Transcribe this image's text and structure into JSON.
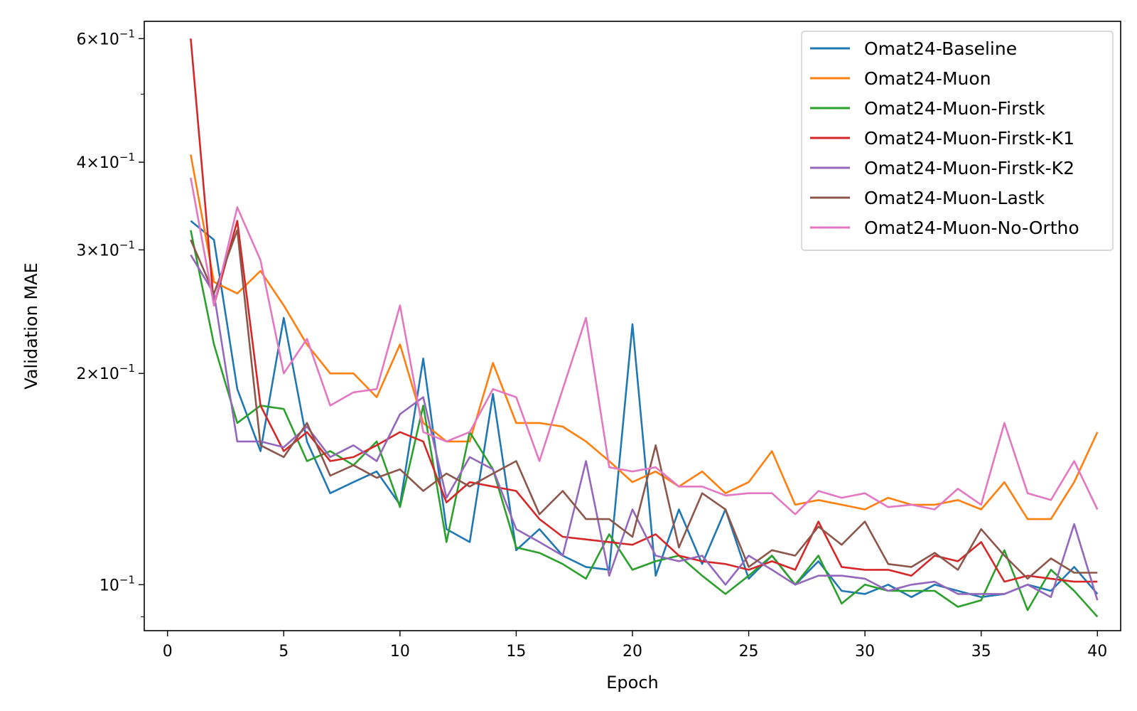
{
  "chart_data": {
    "type": "line",
    "title": "",
    "xlabel": "Epoch",
    "ylabel": "Validation MAE",
    "yscale": "log",
    "xlim": [
      -1,
      41
    ],
    "ylim": [
      0.086,
      0.635
    ],
    "x_ticks": [
      0,
      5,
      10,
      15,
      20,
      25,
      30,
      35,
      40
    ],
    "x_tick_labels": [
      "0",
      "5",
      "10",
      "15",
      "20",
      "25",
      "30",
      "35",
      "40"
    ],
    "y_ticks": [
      {
        "value": 0.6,
        "base": "6×10",
        "exp": "−1"
      },
      {
        "value": 0.4,
        "base": "4×10",
        "exp": "−1"
      },
      {
        "value": 0.3,
        "base": "3×10",
        "exp": "−1"
      },
      {
        "value": 0.2,
        "base": "2×10",
        "exp": "−1"
      },
      {
        "value": 0.1,
        "base": "10",
        "exp": "−1"
      }
    ],
    "y_minor_ticks": [
      0.5,
      0.09
    ],
    "legend_position": "top-right",
    "grid": false,
    "x": [
      1,
      2,
      3,
      4,
      5,
      6,
      7,
      8,
      9,
      10,
      11,
      12,
      13,
      14,
      15,
      16,
      17,
      18,
      19,
      20,
      21,
      22,
      23,
      24,
      25,
      26,
      27,
      28,
      29,
      30,
      31,
      32,
      33,
      34,
      35,
      36,
      37,
      38,
      39,
      40
    ],
    "series": [
      {
        "name": "Omat24-Baseline",
        "color": "#1f77b4",
        "values": [
          0.33,
          0.31,
          0.19,
          0.155,
          0.24,
          0.16,
          0.135,
          0.14,
          0.145,
          0.13,
          0.21,
          0.12,
          0.115,
          0.187,
          0.112,
          0.12,
          0.11,
          0.106,
          0.105,
          0.235,
          0.103,
          0.128,
          0.107,
          0.128,
          0.102,
          0.11,
          0.1,
          0.108,
          0.098,
          0.097,
          0.1,
          0.096,
          0.1,
          0.098,
          0.096,
          0.097,
          0.1,
          0.098,
          0.106,
          0.097
        ]
      },
      {
        "name": "Omat24-Muon",
        "color": "#ff7f0e",
        "values": [
          0.41,
          0.27,
          0.26,
          0.28,
          0.25,
          0.22,
          0.2,
          0.2,
          0.185,
          0.22,
          0.17,
          0.16,
          0.16,
          0.207,
          0.17,
          0.17,
          0.168,
          0.16,
          0.15,
          0.14,
          0.145,
          0.138,
          0.145,
          0.135,
          0.14,
          0.155,
          0.13,
          0.132,
          0.13,
          0.128,
          0.133,
          0.13,
          0.13,
          0.132,
          0.128,
          0.14,
          0.124,
          0.124,
          0.14,
          0.165
        ]
      },
      {
        "name": "Omat24-Muon-Firstk",
        "color": "#2ca02c",
        "values": [
          0.32,
          0.22,
          0.17,
          0.18,
          0.178,
          0.15,
          0.155,
          0.148,
          0.16,
          0.129,
          0.18,
          0.115,
          0.165,
          0.146,
          0.113,
          0.111,
          0.107,
          0.102,
          0.118,
          0.105,
          0.108,
          0.11,
          0.103,
          0.097,
          0.103,
          0.11,
          0.1,
          0.11,
          0.094,
          0.1,
          0.098,
          0.098,
          0.098,
          0.093,
          0.095,
          0.112,
          0.092,
          0.105,
          0.098,
          0.09
        ]
      },
      {
        "name": "Omat24-Muon-Firstk-K1",
        "color": "#d62728",
        "values": [
          0.6,
          0.25,
          0.33,
          0.18,
          0.155,
          0.165,
          0.15,
          0.152,
          0.158,
          0.165,
          0.16,
          0.131,
          0.14,
          0.138,
          0.136,
          0.124,
          0.117,
          0.116,
          0.115,
          0.114,
          0.118,
          0.11,
          0.108,
          0.107,
          0.105,
          0.108,
          0.105,
          0.123,
          0.106,
          0.105,
          0.105,
          0.103,
          0.11,
          0.108,
          0.115,
          0.101,
          0.103,
          0.102,
          0.101,
          0.101
        ]
      },
      {
        "name": "Omat24-Muon-Firstk-K2",
        "color": "#9467bd",
        "values": [
          0.295,
          0.26,
          0.16,
          0.16,
          0.157,
          0.168,
          0.152,
          0.158,
          0.15,
          0.175,
          0.185,
          0.133,
          0.152,
          0.146,
          0.12,
          0.115,
          0.11,
          0.15,
          0.103,
          0.128,
          0.11,
          0.108,
          0.11,
          0.1,
          0.11,
          0.105,
          0.1,
          0.103,
          0.103,
          0.102,
          0.098,
          0.1,
          0.101,
          0.097,
          0.097,
          0.097,
          0.1,
          0.096,
          0.122,
          0.095
        ]
      },
      {
        "name": "Omat24-Muon-Lastk",
        "color": "#8c564b",
        "values": [
          0.31,
          0.26,
          0.32,
          0.158,
          0.152,
          0.17,
          0.143,
          0.148,
          0.142,
          0.146,
          0.136,
          0.144,
          0.138,
          0.144,
          0.15,
          0.126,
          0.136,
          0.124,
          0.124,
          0.117,
          0.158,
          0.113,
          0.135,
          0.128,
          0.106,
          0.112,
          0.11,
          0.121,
          0.114,
          0.123,
          0.107,
          0.106,
          0.111,
          0.105,
          0.12,
          0.11,
          0.102,
          0.109,
          0.104,
          0.104
        ]
      },
      {
        "name": "Omat24-Muon-No-Ortho",
        "color": "#e377c2",
        "values": [
          0.38,
          0.25,
          0.345,
          0.29,
          0.2,
          0.224,
          0.18,
          0.188,
          0.19,
          0.25,
          0.165,
          0.16,
          0.165,
          0.19,
          0.185,
          0.15,
          0.19,
          0.24,
          0.147,
          0.145,
          0.147,
          0.138,
          0.138,
          0.134,
          0.135,
          0.135,
          0.126,
          0.136,
          0.133,
          0.135,
          0.129,
          0.13,
          0.128,
          0.137,
          0.13,
          0.17,
          0.135,
          0.132,
          0.15,
          0.128
        ]
      }
    ]
  }
}
